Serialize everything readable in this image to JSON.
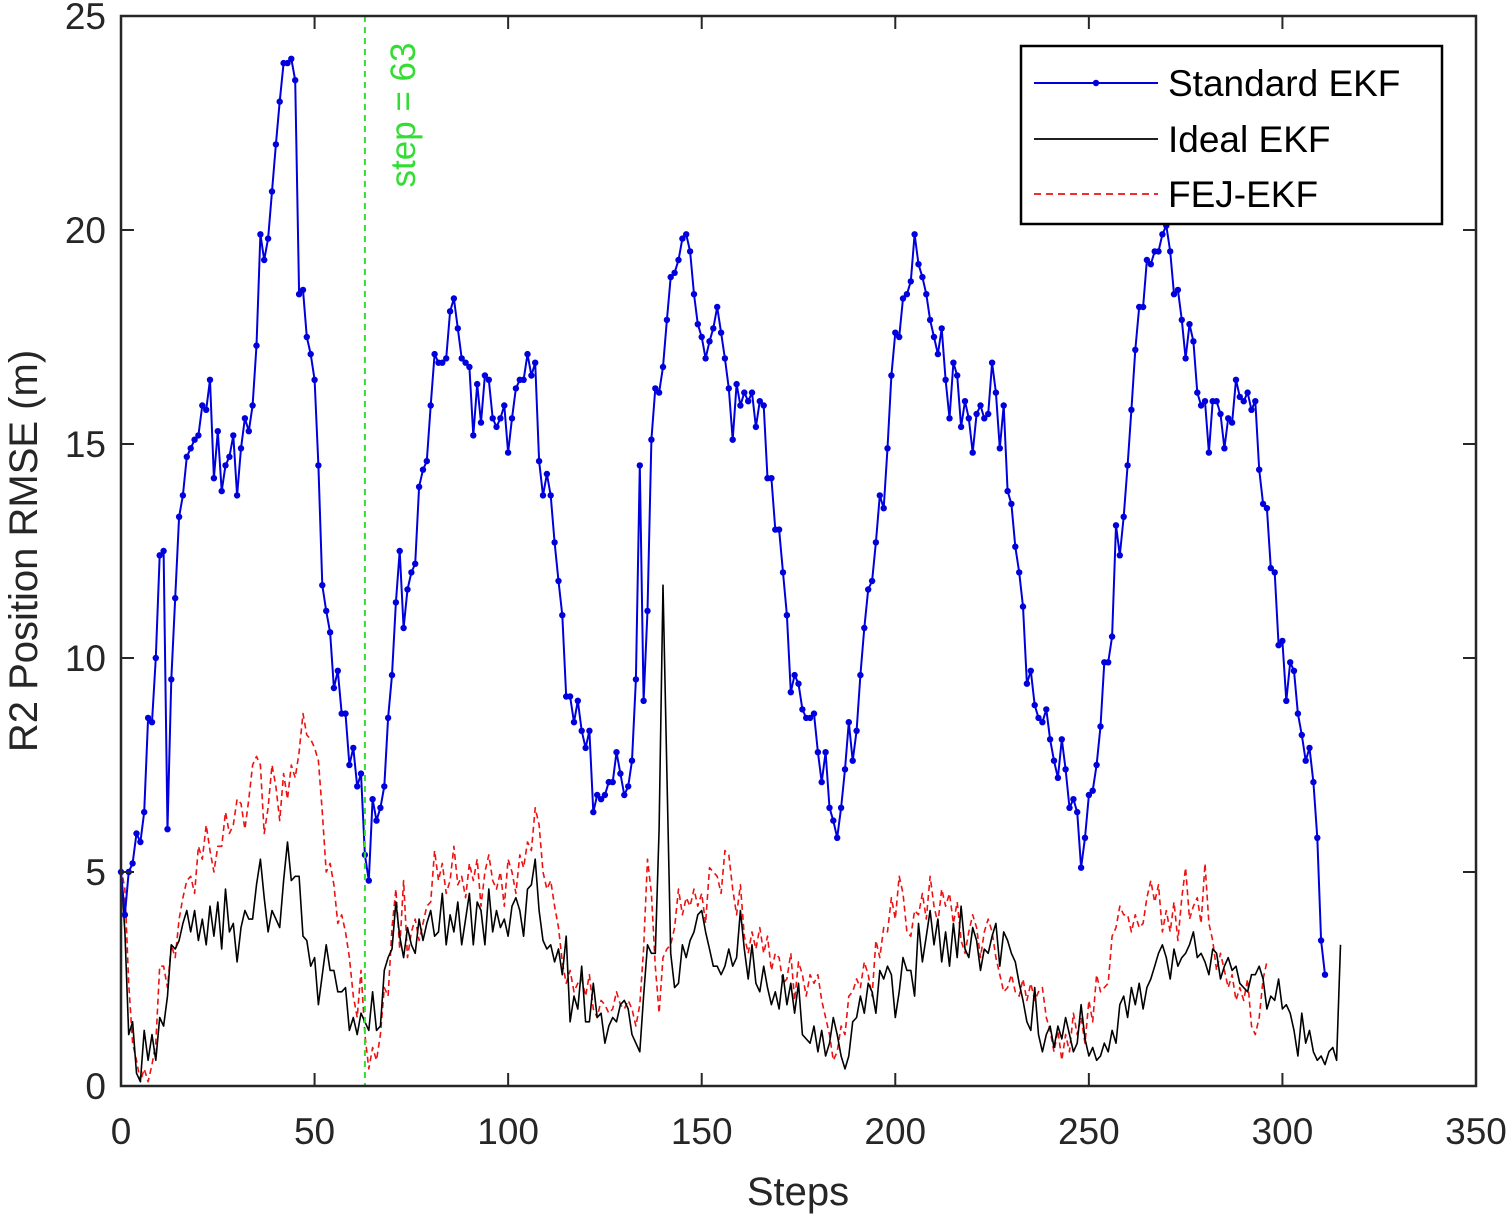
{
  "chart_data": {
    "type": "line",
    "title": "",
    "xlabel": "Steps",
    "ylabel": "R2 Position RMSE (m)",
    "xlim": [
      0,
      350
    ],
    "ylim": [
      0,
      25
    ],
    "xticks": [
      0,
      50,
      100,
      150,
      200,
      250,
      300,
      350
    ],
    "yticks": [
      0,
      5,
      10,
      15,
      20,
      25
    ],
    "grid": false,
    "legend_position": "top-right",
    "vline": {
      "x": 63,
      "label": "step = 63",
      "color": "#33dd33"
    },
    "series": [
      {
        "name": "Standard EKF",
        "color": "#0000dd",
        "style": "solid-with-dots",
        "x_start": 0,
        "x_step": 1,
        "values": [
          5.0,
          4.0,
          5.0,
          5.2,
          5.9,
          5.7,
          6.4,
          8.6,
          8.5,
          10.0,
          12.4,
          12.5,
          6.0,
          9.5,
          11.4,
          13.3,
          13.8,
          14.7,
          14.9,
          15.1,
          15.2,
          15.9,
          15.8,
          16.5,
          14.2,
          15.3,
          13.9,
          14.5,
          14.7,
          15.2,
          13.8,
          14.9,
          15.6,
          15.3,
          15.9,
          17.3,
          19.9,
          19.3,
          19.8,
          20.9,
          22.0,
          23.0,
          23.9,
          23.9,
          24.0,
          23.5,
          18.5,
          18.6,
          17.5,
          17.1,
          16.5,
          14.5,
          11.7,
          11.1,
          10.6,
          9.3,
          9.7,
          8.7,
          8.7,
          7.5,
          7.9,
          7.0,
          7.3,
          5.4,
          4.8,
          6.7,
          6.2,
          6.5,
          7.0,
          8.6,
          9.6,
          11.3,
          12.5,
          10.7,
          11.6,
          12.0,
          12.2,
          14.0,
          14.4,
          14.6,
          15.9,
          17.1,
          16.9,
          16.9,
          17.0,
          18.1,
          18.4,
          17.7,
          17.0,
          16.9,
          16.8,
          15.2,
          16.4,
          15.5,
          16.6,
          16.5,
          15.6,
          15.4,
          15.6,
          15.9,
          14.8,
          15.6,
          16.3,
          16.5,
          16.5,
          17.1,
          16.6,
          16.9,
          14.6,
          13.8,
          14.3,
          13.8,
          12.7,
          11.8,
          11.0,
          9.1,
          9.1,
          8.5,
          9.0,
          8.3,
          7.9,
          8.3,
          6.4,
          6.8,
          6.7,
          6.8,
          7.1,
          7.1,
          7.8,
          7.3,
          6.8,
          7.0,
          7.6,
          9.5,
          14.5,
          9.0,
          11.1,
          15.1,
          16.3,
          16.2,
          16.8,
          17.9,
          18.9,
          19.0,
          19.3,
          19.8,
          19.9,
          19.5,
          18.5,
          17.8,
          17.5,
          17.0,
          17.4,
          17.7,
          18.2,
          17.6,
          17.0,
          16.3,
          15.1,
          16.4,
          15.9,
          16.2,
          16.0,
          16.2,
          15.4,
          16.0,
          15.9,
          14.2,
          14.2,
          13.0,
          13.0,
          12.0,
          11.0,
          9.2,
          9.6,
          9.4,
          8.8,
          8.6,
          8.6,
          8.7,
          7.8,
          7.1,
          7.8,
          6.5,
          6.2,
          5.8,
          6.5,
          7.4,
          8.5,
          7.6,
          8.3,
          9.6,
          10.7,
          11.6,
          11.8,
          12.7,
          13.8,
          13.5,
          14.9,
          16.6,
          17.6,
          17.5,
          18.4,
          18.5,
          18.8,
          19.9,
          19.2,
          18.9,
          18.5,
          17.9,
          17.5,
          17.1,
          17.7,
          16.5,
          15.6,
          16.9,
          16.6,
          15.4,
          16.0,
          15.6,
          14.8,
          15.7,
          15.9,
          15.6,
          15.7,
          16.9,
          16.2,
          14.9,
          15.9,
          13.9,
          13.6,
          12.6,
          12.0,
          11.2,
          9.4,
          9.7,
          8.9,
          8.6,
          8.5,
          8.8,
          8.1,
          7.6,
          7.2,
          8.1,
          7.4,
          6.5,
          6.7,
          6.4,
          5.1,
          5.8,
          6.8,
          6.9,
          7.5,
          8.4,
          9.9,
          9.9,
          10.5,
          13.1,
          12.4,
          13.3,
          14.5,
          15.8,
          17.2,
          18.2,
          18.2,
          19.3,
          19.2,
          19.5,
          19.5,
          19.9,
          20.1,
          19.5,
          18.5,
          18.6,
          17.9,
          17.0,
          17.8,
          17.4,
          16.2,
          15.9,
          16.0,
          14.8,
          16.0,
          16.0,
          15.7,
          14.9,
          15.6,
          15.5,
          16.5,
          16.1,
          16.0,
          16.2,
          15.8,
          16.0,
          14.4,
          13.6,
          13.5,
          12.1,
          12.0,
          10.3,
          10.4,
          9.0,
          9.9,
          9.7,
          8.7,
          8.2,
          7.6,
          7.9,
          7.1,
          5.8,
          3.4,
          2.6
        ]
      },
      {
        "name": "Ideal EKF",
        "color": "#000000",
        "style": "solid",
        "x_start": 0,
        "x_step": 1,
        "values": [
          5.0,
          3.6,
          1.2,
          1.5,
          0.3,
          0.1,
          1.3,
          0.6,
          1.2,
          0.6,
          1.6,
          1.4,
          2.1,
          3.3,
          3.2,
          3.4,
          3.8,
          4.1,
          3.6,
          4.1,
          3.4,
          3.9,
          3.3,
          4.2,
          3.5,
          4.3,
          3.2,
          4.6,
          3.6,
          3.8,
          2.9,
          3.7,
          4.1,
          3.9,
          3.9,
          4.7,
          5.3,
          4.4,
          3.6,
          4.1,
          3.9,
          3.7,
          4.8,
          5.7,
          4.8,
          4.9,
          4.9,
          3.5,
          3.4,
          2.8,
          3.0,
          1.9,
          2.6,
          3.3,
          2.7,
          2.7,
          2.2,
          2.2,
          2.3,
          1.3,
          1.6,
          1.2,
          1.7,
          1.5,
          1.3,
          2.2,
          1.3,
          1.4,
          2.7,
          3.0,
          3.2,
          4.3,
          3.5,
          3.0,
          3.7,
          3.3,
          3.1,
          3.9,
          3.4,
          3.8,
          4.1,
          3.5,
          3.6,
          4.5,
          3.3,
          4.0,
          3.6,
          4.3,
          3.3,
          3.9,
          4.5,
          3.3,
          4.3,
          4.1,
          3.3,
          4.6,
          3.6,
          4.1,
          3.7,
          3.9,
          3.5,
          4.2,
          4.4,
          4.1,
          3.5,
          4.6,
          4.7,
          5.3,
          4.1,
          3.4,
          3.2,
          3.3,
          2.9,
          3.2,
          2.6,
          3.5,
          1.5,
          2.1,
          1.8,
          2.8,
          1.5,
          1.5,
          2.4,
          1.6,
          1.7,
          1.0,
          1.4,
          1.6,
          1.5,
          1.9,
          2.0,
          1.8,
          1.2,
          1.0,
          0.8,
          2.1,
          3.3,
          3.1,
          3.1,
          6.0,
          11.7,
          7.3,
          3.1,
          2.3,
          2.4,
          3.3,
          3.0,
          3.4,
          3.6,
          4.0,
          4.1,
          3.6,
          3.2,
          2.8,
          2.8,
          2.6,
          2.8,
          3.2,
          2.8,
          3.0,
          4.1,
          3.2,
          2.5,
          3.3,
          2.4,
          2.2,
          2.8,
          2.3,
          1.9,
          2.2,
          1.8,
          2.6,
          1.9,
          2.4,
          1.7,
          2.4,
          1.2,
          1.1,
          1.0,
          1.4,
          0.8,
          1.3,
          0.7,
          1.0,
          1.6,
          1.2,
          0.7,
          0.4,
          0.7,
          1.5,
          1.6,
          2.1,
          1.7,
          2.4,
          2.2,
          1.7,
          2.7,
          2.5,
          2.8,
          2.6,
          1.6,
          2.2,
          3.0,
          2.7,
          2.7,
          2.1,
          3.8,
          2.9,
          3.5,
          4.1,
          3.3,
          3.9,
          2.9,
          3.6,
          2.8,
          3.8,
          3.0,
          4.2,
          3.2,
          3.0,
          3.7,
          3.4,
          2.7,
          3.2,
          3.1,
          3.5,
          3.8,
          2.8,
          3.6,
          3.4,
          3.1,
          2.9,
          2.4,
          2.0,
          1.5,
          1.3,
          2.3,
          1.2,
          0.8,
          1.2,
          1.4,
          0.9,
          1.4,
          1.1,
          1.6,
          1.2,
          0.8,
          1.0,
          1.9,
          1.1,
          0.7,
          0.9,
          0.6,
          0.7,
          1.0,
          0.8,
          1.3,
          1.0,
          1.9,
          2.1,
          1.6,
          2.3,
          1.9,
          2.4,
          1.8,
          2.3,
          2.5,
          2.8,
          3.1,
          3.3,
          3.0,
          2.5,
          3.2,
          2.8,
          3.0,
          3.1,
          3.3,
          3.6,
          3.0,
          3.1,
          2.9,
          2.6,
          3.2,
          3.1,
          2.5,
          2.8,
          3.0,
          2.7,
          2.8,
          2.4,
          2.3,
          2.2,
          2.6,
          2.6,
          2.8,
          2.5,
          1.8,
          2.1,
          2.0,
          2.5,
          1.8,
          1.9,
          1.7,
          1.3,
          0.7,
          1.7,
          1.0,
          1.3,
          0.8,
          0.6,
          0.7,
          0.5,
          0.8,
          0.9,
          0.6,
          3.3
        ]
      },
      {
        "name": "FEJ-EKF",
        "color": "#ee1111",
        "style": "dashed",
        "x_start": 0,
        "x_step": 1,
        "values": [
          5.1,
          4.6,
          2.4,
          1.0,
          0.6,
          0.1,
          0.4,
          0.1,
          0.5,
          1.0,
          2.8,
          2.8,
          2.3,
          3.3,
          3.0,
          3.9,
          4.4,
          4.8,
          4.9,
          4.5,
          5.6,
          5.3,
          6.1,
          5.5,
          5.0,
          5.6,
          5.6,
          6.4,
          5.9,
          6.1,
          6.7,
          6.6,
          6.0,
          6.7,
          7.5,
          7.7,
          7.5,
          5.9,
          6.5,
          7.5,
          7.0,
          6.2,
          7.3,
          6.7,
          7.5,
          7.2,
          7.8,
          8.7,
          8.2,
          8.1,
          7.9,
          7.6,
          6.4,
          5.0,
          5.2,
          4.7,
          3.8,
          4.0,
          3.6,
          3.0,
          2.1,
          1.6,
          2.7,
          1.2,
          0.4,
          0.9,
          0.6,
          1.2,
          2.3,
          2.1,
          3.7,
          4.6,
          3.2,
          4.8,
          3.0,
          3.6,
          3.9,
          3.4,
          3.8,
          4.2,
          4.3,
          5.5,
          4.8,
          5.2,
          4.5,
          4.8,
          5.6,
          4.7,
          4.9,
          4.4,
          5.2,
          4.8,
          5.3,
          4.2,
          5.0,
          5.4,
          4.8,
          4.6,
          5.0,
          4.2,
          5.3,
          5.0,
          4.5,
          5.4,
          5.1,
          5.7,
          5.5,
          6.5,
          6.1,
          5.0,
          4.6,
          4.8,
          4.2,
          3.7,
          2.9,
          2.4,
          2.7,
          2.2,
          2.4,
          2.5,
          2.1,
          2.6,
          1.8,
          1.6,
          2.0,
          1.9,
          1.7,
          1.8,
          2.2,
          1.9,
          1.8,
          2.0,
          1.8,
          1.4,
          1.9,
          3.2,
          5.3,
          4.5,
          2.8,
          1.7,
          3.0,
          3.2,
          3.3,
          3.7,
          4.6,
          4.0,
          4.4,
          4.2,
          4.6,
          4.2,
          4.5,
          3.8,
          5.1,
          5.0,
          4.9,
          4.5,
          5.5,
          5.4,
          4.6,
          4.0,
          4.7,
          3.5,
          3.1,
          3.6,
          3.2,
          3.7,
          3.1,
          3.5,
          2.7,
          3.1,
          3.0,
          2.4,
          2.5,
          3.1,
          2.0,
          2.9,
          2.6,
          2.1,
          2.6,
          2.4,
          2.6,
          2.0,
          1.6,
          1.2,
          0.6,
          0.8,
          1.4,
          1.2,
          2.1,
          2.2,
          2.5,
          2.3,
          2.9,
          2.6,
          2.1,
          3.4,
          3.0,
          3.7,
          3.6,
          4.4,
          3.9,
          4.9,
          4.5,
          3.6,
          3.5,
          4.1,
          4.0,
          4.5,
          3.9,
          4.9,
          4.2,
          3.8,
          4.6,
          4.2,
          4.5,
          3.8,
          4.3,
          3.4,
          3.1,
          3.6,
          4.0,
          3.7,
          3.0,
          3.6,
          3.9,
          3.6,
          3.0,
          2.6,
          2.2,
          2.3,
          2.6,
          2.2,
          2.1,
          2.5,
          2.0,
          2.4,
          2.0,
          2.2,
          2.3,
          1.6,
          1.3,
          0.8,
          1.3,
          0.6,
          1.2,
          0.8,
          1.7,
          1.2,
          1.6,
          1.0,
          2.0,
          1.5,
          2.6,
          2.2,
          2.3,
          2.4,
          3.5,
          3.7,
          4.2,
          4.0,
          4.0,
          3.6,
          4.0,
          3.7,
          3.8,
          4.4,
          4.8,
          4.3,
          4.7,
          3.6,
          4.1,
          3.6,
          4.3,
          3.4,
          4.4,
          5.1,
          3.9,
          4.2,
          4.4,
          3.8,
          5.2,
          3.8,
          3.4,
          2.7,
          3.1,
          2.7,
          2.3,
          2.6,
          2.0,
          2.3,
          2.0,
          2.5,
          1.4,
          1.2,
          1.6,
          2.5,
          2.9
        ]
      }
    ]
  }
}
